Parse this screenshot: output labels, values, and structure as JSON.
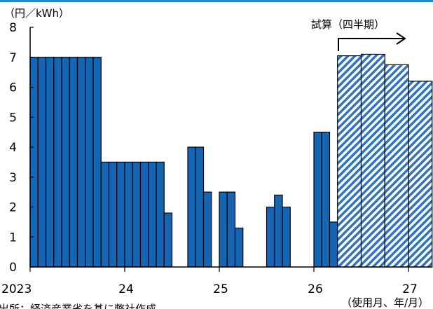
{
  "chart_data": {
    "type": "bar",
    "title": "",
    "ylabel": "（円／kWh）",
    "xlabel": "（使用月、年/月）",
    "ylim": [
      0,
      8
    ],
    "yticks": [
      "0",
      "1",
      "2",
      "3",
      "4",
      "5",
      "6",
      "7",
      "8"
    ],
    "x_tick_labels": [
      {
        "label": "2023",
        "month": 0
      },
      {
        "label": "24",
        "month": 12
      },
      {
        "label": "25",
        "month": 24
      },
      {
        "label": "26",
        "month": 36
      },
      {
        "label": "27",
        "month": 48
      }
    ],
    "annotation": "試算（四半期）",
    "source_note": "出所：経済産業省を基に弊社作成",
    "colors": {
      "bar": "#1565b5",
      "projection_stripe": "#2f74c0",
      "axis": "#000000",
      "top_rule": "#1e88d2"
    },
    "series": [
      {
        "type": "monthly",
        "bars": [
          {
            "month": "2023-01",
            "value": 7.0
          },
          {
            "month": "2023-02",
            "value": 7.0
          },
          {
            "month": "2023-03",
            "value": 7.0
          },
          {
            "month": "2023-04",
            "value": 7.0
          },
          {
            "month": "2023-05",
            "value": 7.0
          },
          {
            "month": "2023-06",
            "value": 7.0
          },
          {
            "month": "2023-07",
            "value": 7.0
          },
          {
            "month": "2023-08",
            "value": 7.0
          },
          {
            "month": "2023-09",
            "value": 7.0
          },
          {
            "month": "2023-10",
            "value": 3.5
          },
          {
            "month": "2023-11",
            "value": 3.5
          },
          {
            "month": "2023-12",
            "value": 3.5
          },
          {
            "month": "2024-01",
            "value": 3.5
          },
          {
            "month": "2024-02",
            "value": 3.5
          },
          {
            "month": "2024-03",
            "value": 3.5
          },
          {
            "month": "2024-04",
            "value": 3.5
          },
          {
            "month": "2024-05",
            "value": 3.5
          },
          {
            "month": "2024-06",
            "value": 1.8
          },
          {
            "month": "2024-07",
            "value": 0
          },
          {
            "month": "2024-08",
            "value": 0
          },
          {
            "month": "2024-09",
            "value": 4.0
          },
          {
            "month": "2024-10",
            "value": 4.0
          },
          {
            "month": "2024-11",
            "value": 2.5
          },
          {
            "month": "2024-12",
            "value": 0
          },
          {
            "month": "2025-01",
            "value": 2.5
          },
          {
            "month": "2025-02",
            "value": 2.5
          },
          {
            "month": "2025-03",
            "value": 1.3
          },
          {
            "month": "2025-04",
            "value": 0
          },
          {
            "month": "2025-05",
            "value": 0
          },
          {
            "month": "2025-06",
            "value": 0
          },
          {
            "month": "2025-07",
            "value": 2.0
          },
          {
            "month": "2025-08",
            "value": 2.4
          },
          {
            "month": "2025-09",
            "value": 2.0
          },
          {
            "month": "2025-10",
            "value": 0
          },
          {
            "month": "2025-11",
            "value": 0
          },
          {
            "month": "2025-12",
            "value": 0
          },
          {
            "month": "2026-01",
            "value": 4.5
          },
          {
            "month": "2026-02",
            "value": 4.5
          },
          {
            "month": "2026-03",
            "value": 1.5
          }
        ]
      },
      {
        "type": "quarterly-projection",
        "bars": [
          {
            "quarter": "2026-Q2",
            "value": 7.05
          },
          {
            "quarter": "2026-Q3",
            "value": 7.1
          },
          {
            "quarter": "2026-Q4",
            "value": 6.75
          },
          {
            "quarter": "2027-Q1",
            "value": 6.2
          }
        ]
      }
    ]
  }
}
